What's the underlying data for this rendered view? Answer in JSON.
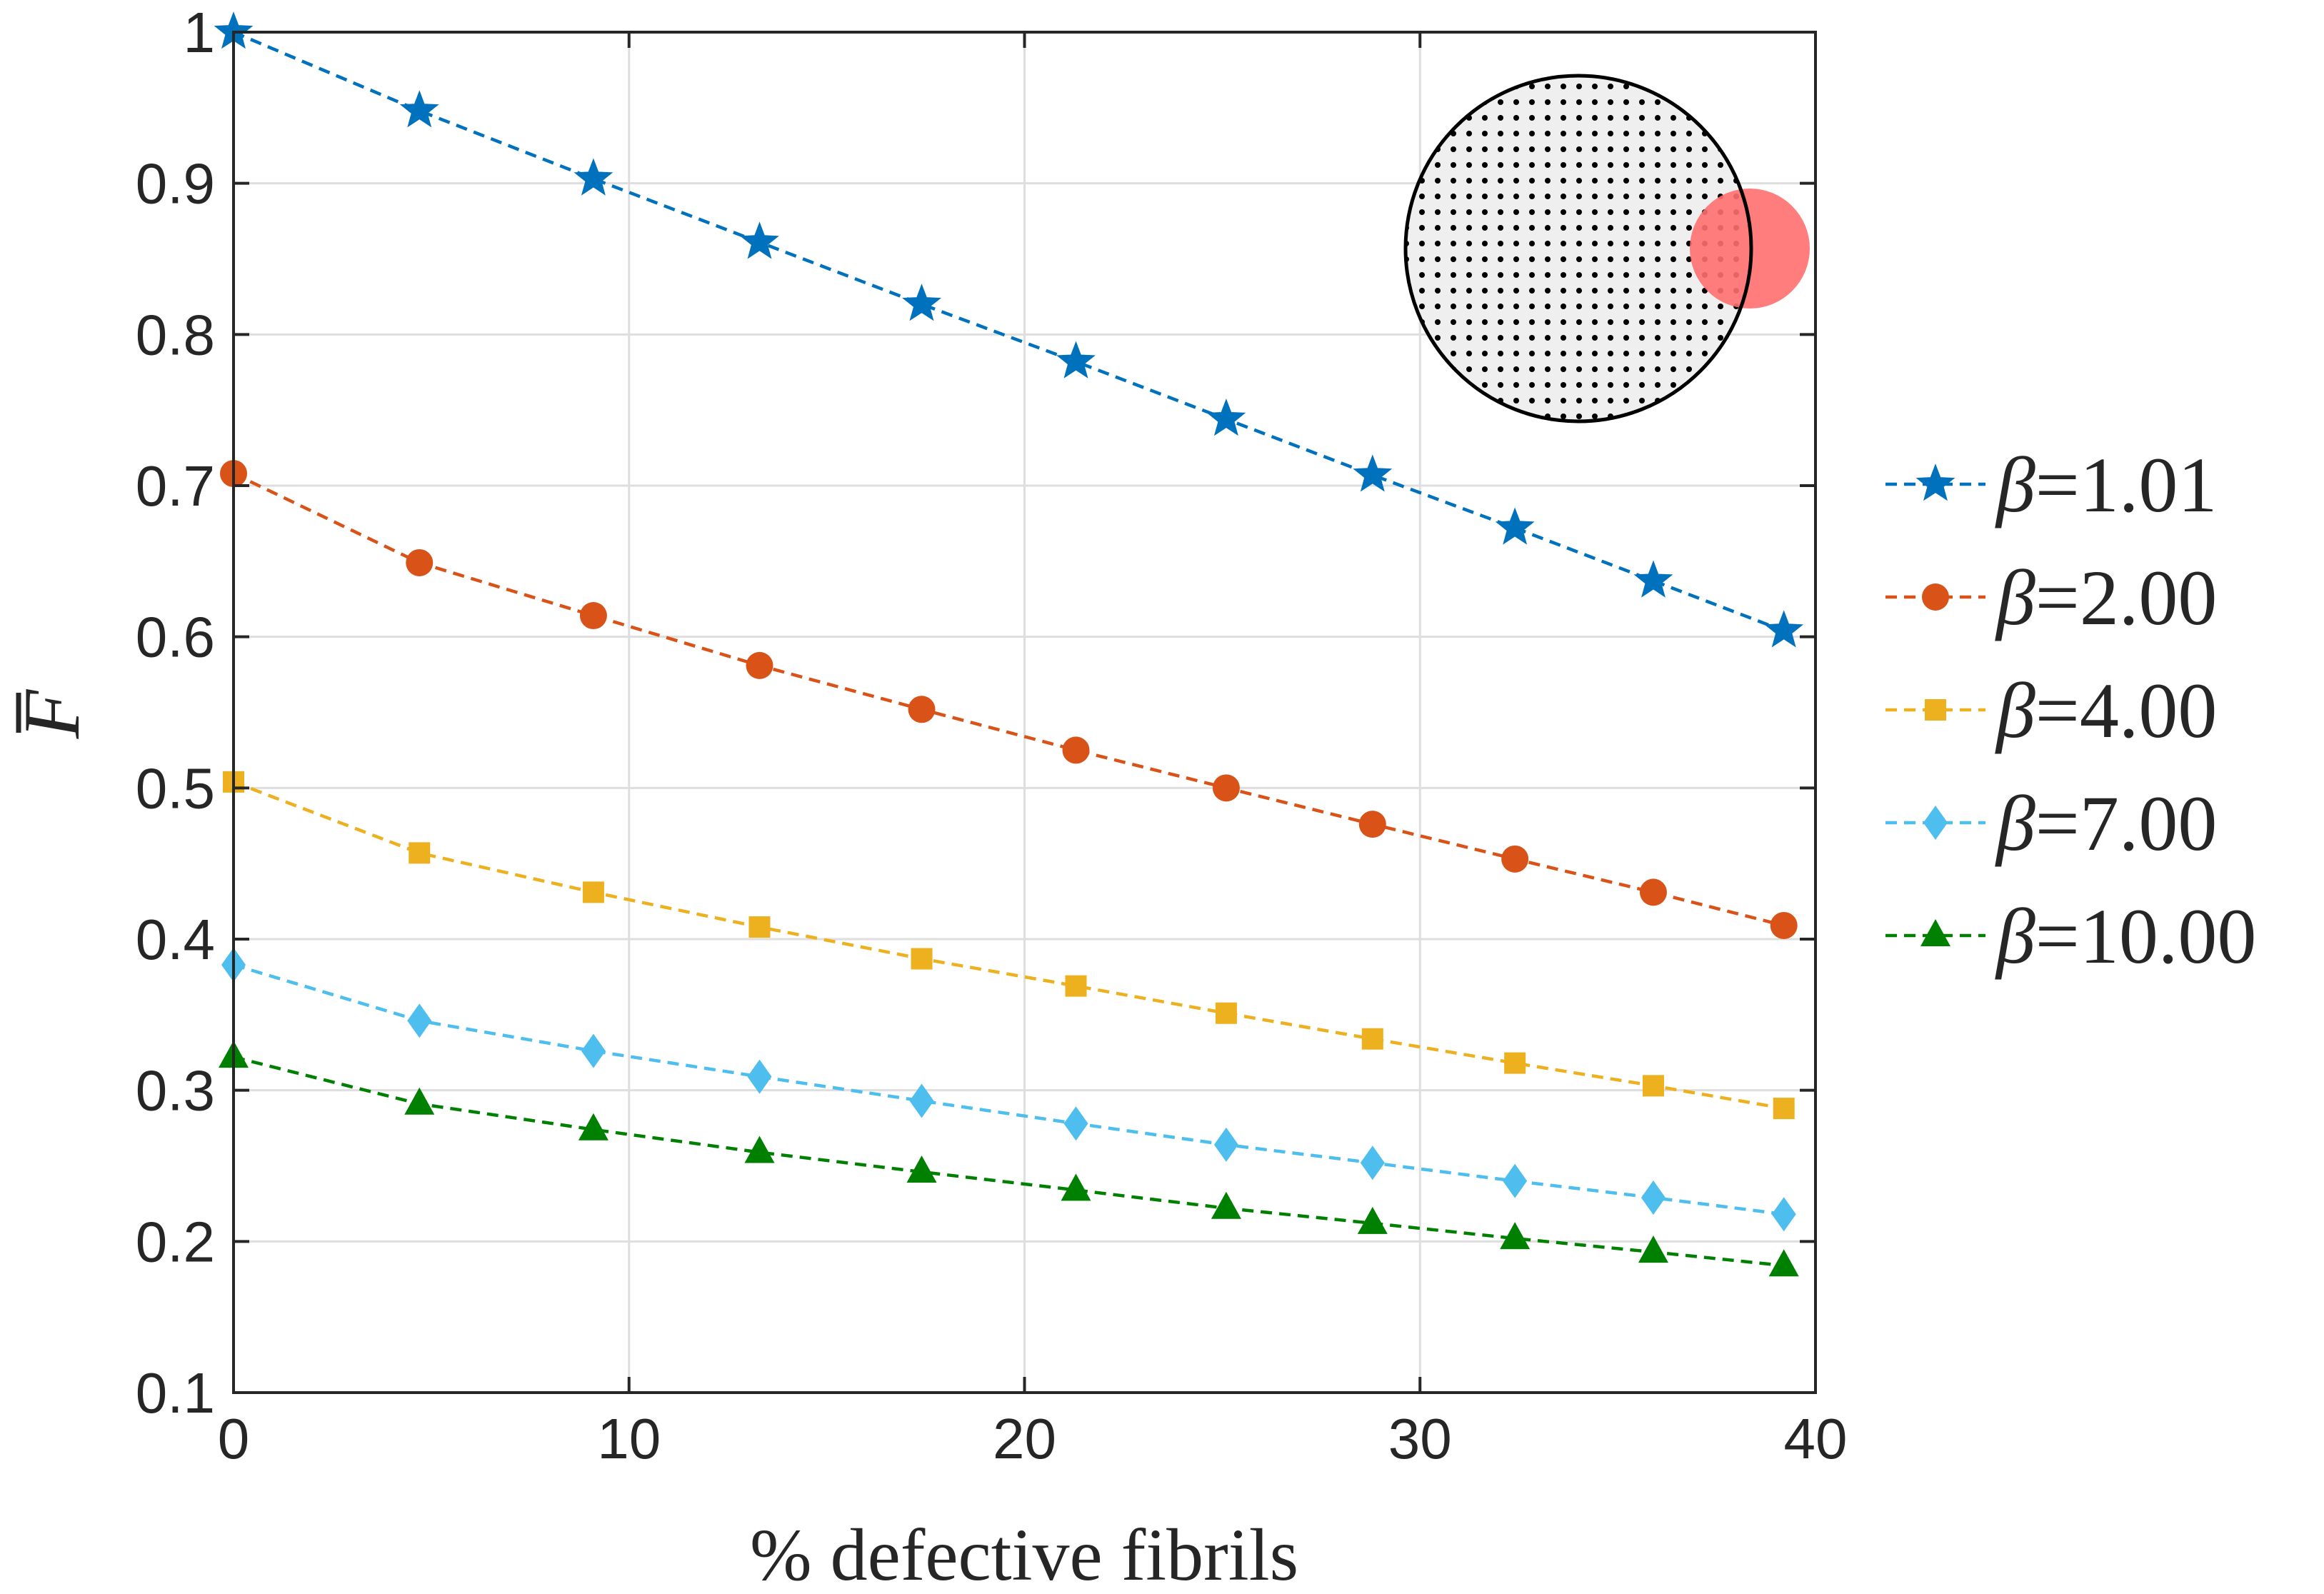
{
  "chart_data": {
    "type": "line",
    "title": "",
    "xlabel": "% defective fibrils",
    "ylabel": "F",
    "ylabel_accent": "bar",
    "xlim": [
      0,
      40
    ],
    "ylim": [
      0.1,
      1.0
    ],
    "xticks": [
      0,
      10,
      20,
      30,
      40
    ],
    "yticks": [
      0.1,
      0.2,
      0.3,
      0.4,
      0.5,
      0.6,
      0.7,
      0.8,
      0.9,
      1.0
    ],
    "xtick_labels": [
      "0",
      "10",
      "20",
      "30",
      "40"
    ],
    "ytick_labels": [
      "0.1",
      "0.2",
      "0.3",
      "0.4",
      "0.5",
      "0.6",
      "0.7",
      "0.8",
      "0.9",
      "1"
    ],
    "grid": true,
    "legend_position": "outside-right",
    "x": [
      0,
      4.7,
      9.1,
      13.3,
      17.4,
      21.3,
      25.1,
      28.8,
      32.4,
      35.9,
      39.2
    ],
    "series": [
      {
        "name": "β=1.01",
        "greek": "β",
        "value_text": "=1.01",
        "color": "#0072BD",
        "marker": "star",
        "values": [
          1.0,
          0.948,
          0.903,
          0.861,
          0.82,
          0.782,
          0.744,
          0.707,
          0.672,
          0.637,
          0.604
        ]
      },
      {
        "name": "β=2.00",
        "greek": "β",
        "value_text": "=2.00",
        "color": "#D95319",
        "marker": "circle",
        "values": [
          0.708,
          0.649,
          0.614,
          0.581,
          0.552,
          0.525,
          0.5,
          0.476,
          0.453,
          0.431,
          0.409
        ]
      },
      {
        "name": "β=4.00",
        "greek": "β",
        "value_text": "=4.00",
        "color": "#EDB120",
        "marker": "square",
        "values": [
          0.504,
          0.457,
          0.431,
          0.408,
          0.387,
          0.369,
          0.351,
          0.334,
          0.318,
          0.303,
          0.288
        ]
      },
      {
        "name": "β=7.00",
        "greek": "β",
        "value_text": "=7.00",
        "color": "#4DBEEE",
        "marker": "diamond",
        "values": [
          0.383,
          0.346,
          0.326,
          0.309,
          0.293,
          0.278,
          0.264,
          0.252,
          0.24,
          0.229,
          0.218
        ]
      },
      {
        "name": "β=10.00",
        "greek": "β",
        "value_text": "=10.00",
        "color": "#008000",
        "marker": "triangle",
        "values": [
          0.322,
          0.291,
          0.274,
          0.259,
          0.246,
          0.234,
          0.222,
          0.212,
          0.202,
          0.193,
          0.184
        ]
      }
    ],
    "inset": {
      "description_shape": "dotted cross-section circle with small red defect circle on right edge",
      "defect_color": "#FF6F6F",
      "boundary_color": "#000000",
      "fill_color": "#EFEFEF"
    }
  }
}
